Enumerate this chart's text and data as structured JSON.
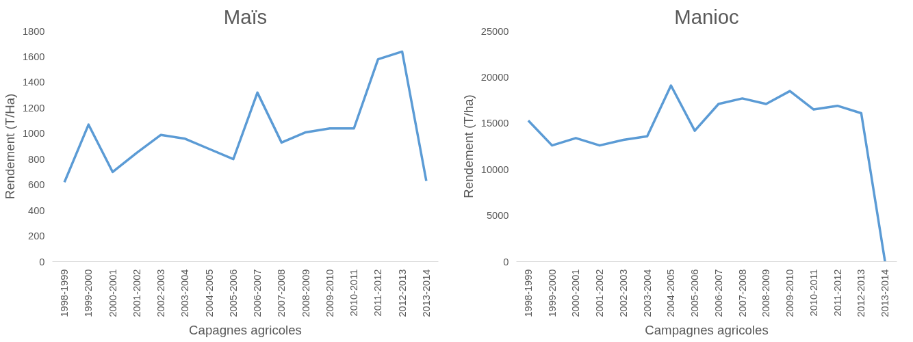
{
  "chart_data": [
    {
      "type": "line",
      "title": "Maïs",
      "xlabel": "Capagnes agricoles",
      "ylabel": "Rendement (T/Ha)",
      "categories": [
        "1998-1999",
        "1999-2000",
        "2000-2001",
        "2001-2002",
        "2002-2003",
        "2003-2004",
        "2004-2005",
        "2005-2006",
        "2006-2007",
        "2007-2008",
        "2008-2009",
        "2009-2010",
        "2010-2011",
        "2011-2012",
        "2012-2013",
        "2013-2014"
      ],
      "series": [
        {
          "color": "#5b9bd5",
          "values": [
            620,
            1070,
            700,
            850,
            990,
            960,
            880,
            800,
            1320,
            930,
            1010,
            1040,
            1040,
            1580,
            1640,
            630
          ]
        }
      ],
      "ylim": [
        0,
        1800
      ],
      "yticks": [
        0,
        200,
        400,
        600,
        800,
        1000,
        1200,
        1400,
        1600,
        1800
      ],
      "grid": false
    },
    {
      "type": "line",
      "title": "Manioc",
      "xlabel": "Campagnes agricoles",
      "ylabel": "Rendement (T/ha)",
      "categories": [
        "1998-1999",
        "1999-2000",
        "2000-2001",
        "2001-2002",
        "2002-2003",
        "2003-2004",
        "2004-2005",
        "2005-2006",
        "2006-2007",
        "2007-2008",
        "2008-2009",
        "2009-2010",
        "2010-2011",
        "2011-2012",
        "2012-2013",
        "2013-2014"
      ],
      "series": [
        {
          "color": "#5b9bd5",
          "values": [
            15300,
            12600,
            13400,
            12600,
            13200,
            13600,
            19100,
            14200,
            17100,
            17700,
            17100,
            18500,
            16500,
            16900,
            16100,
            0
          ]
        }
      ],
      "ylim": [
        0,
        25000
      ],
      "yticks": [
        0,
        5000,
        10000,
        15000,
        20000,
        25000
      ],
      "grid": false
    }
  ]
}
